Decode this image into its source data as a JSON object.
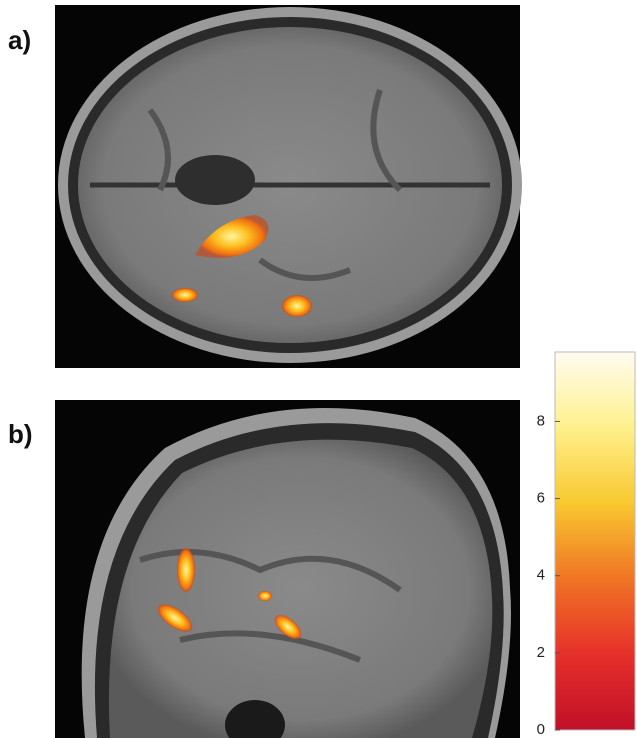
{
  "panels": [
    {
      "label": "a)"
    },
    {
      "label": "b)"
    }
  ],
  "colorbar": {
    "lim": [
      0,
      9.8
    ],
    "ticks": [
      0,
      2,
      4,
      6,
      8
    ]
  }
}
